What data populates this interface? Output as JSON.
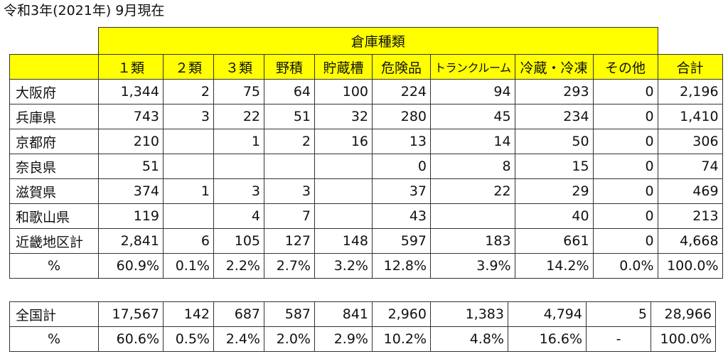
{
  "title": "令和3年(2021年) 9月現在",
  "group_header": "倉庫種類",
  "columns": [
    "１類",
    "２類",
    "３類",
    "野積",
    "貯蔵槽",
    "危険品",
    "トランクルーム",
    "冷蔵・冷凍",
    "その他",
    "合計"
  ],
  "rows": [
    {
      "label": "大阪府",
      "values": [
        "1,344",
        "2",
        "75",
        "64",
        "100",
        "224",
        "94",
        "293",
        "0",
        "2,196"
      ]
    },
    {
      "label": "兵庫県",
      "values": [
        "743",
        "3",
        "22",
        "51",
        "32",
        "280",
        "45",
        "234",
        "0",
        "1,410"
      ]
    },
    {
      "label": "京都府",
      "values": [
        "210",
        "",
        "1",
        "2",
        "16",
        "13",
        "14",
        "50",
        "0",
        "306"
      ]
    },
    {
      "label": "奈良県",
      "values": [
        "51",
        "",
        "",
        "",
        "",
        "0",
        "8",
        "15",
        "0",
        "74"
      ]
    },
    {
      "label": "滋賀県",
      "values": [
        "374",
        "1",
        "3",
        "3",
        "",
        "37",
        "22",
        "29",
        "0",
        "469"
      ]
    },
    {
      "label": "和歌山県",
      "values": [
        "119",
        "",
        "4",
        "7",
        "",
        "43",
        "",
        "40",
        "0",
        "213"
      ]
    },
    {
      "label": "近畿地区計",
      "values": [
        "2,841",
        "6",
        "105",
        "127",
        "148",
        "597",
        "183",
        "661",
        "0",
        "4,668"
      ]
    },
    {
      "label": "%",
      "values": [
        "60.9%",
        "0.1%",
        "2.2%",
        "2.7%",
        "3.2%",
        "12.8%",
        "3.9%",
        "14.2%",
        "0.0%",
        "100.0%"
      ]
    }
  ],
  "national_rows": [
    {
      "label": "全国計",
      "values": [
        "17,567",
        "142",
        "687",
        "587",
        "841",
        "2,960",
        "1,383",
        "4,794",
        "5",
        "28,966"
      ]
    },
    {
      "label": "%",
      "values": [
        "60.6%",
        "0.5%",
        "2.4%",
        "2.0%",
        "2.9%",
        "10.2%",
        "4.8%",
        "16.6%",
        "-",
        "100.0%"
      ]
    }
  ]
}
